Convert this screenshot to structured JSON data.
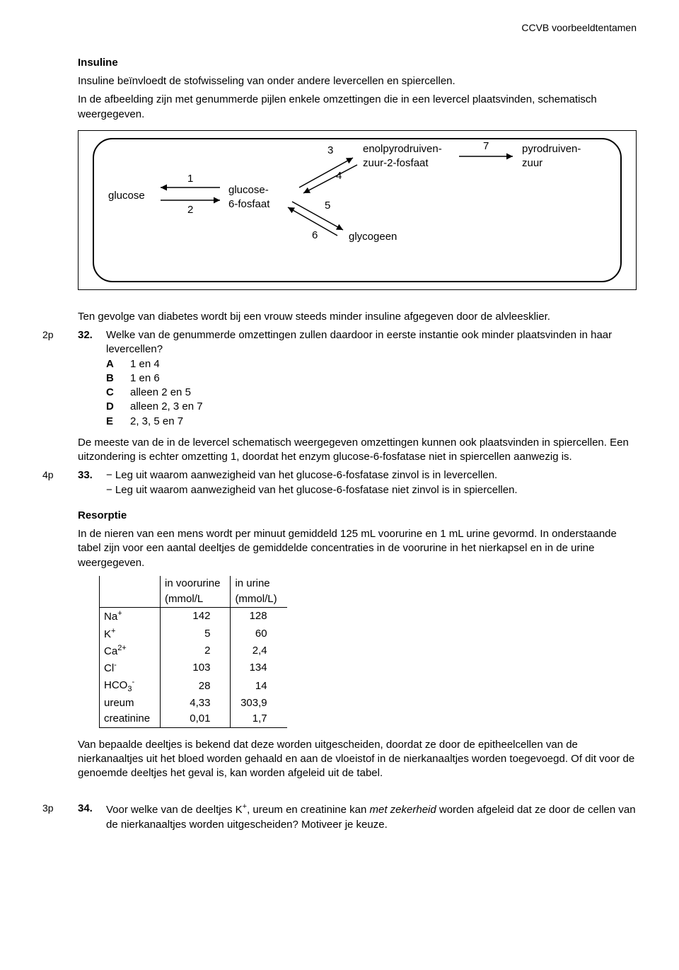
{
  "header": {
    "right": "CCVB voorbeeldtentamen"
  },
  "insuline": {
    "title": "Insuline",
    "p1": "Insuline beïnvloedt de stofwisseling van onder andere levercellen en spiercellen.",
    "p2": "In de afbeelding zijn met genummerde pijlen enkele omzettingen die in een levercel plaatsvinden, schematisch weergegeven."
  },
  "diagram": {
    "labels": {
      "glucose": "glucose",
      "glucose6p": "glucose-\n6-fosfaat",
      "enolpyruvate": "enolpyrodruiven-\nzuur-2-fosfaat",
      "pyruvate": "pyrodruiven-\nzuur",
      "glycogeen": "glycogeen"
    },
    "nums": {
      "n1": "1",
      "n2": "2",
      "n3": "3",
      "n4": "4",
      "n5": "5",
      "n6": "6",
      "n7": "7"
    }
  },
  "q32": {
    "pts": "2p",
    "num": "32.",
    "pre": "Ten gevolge van diabetes wordt bij een vrouw steeds minder insuline afgegeven door de alvleesklier.",
    "stem": "Welke van de genummerde omzettingen zullen daardoor in eerste instantie ook minder plaatsvinden in haar levercellen?",
    "opts": {
      "A": "1 en 4",
      "B": "1 en 6",
      "C": "alleen 2 en 5",
      "D": "alleen 2, 3 en 7",
      "E": "2, 3, 5 en 7"
    },
    "after": "De meeste van de in de levercel schematisch weergegeven omzettingen kunnen ook plaatsvinden in spiercellen. Een uitzondering is echter omzetting 1, doordat het enzym glucose-6-fosfatase niet in spiercellen aanwezig is."
  },
  "q33": {
    "pts": "4p",
    "num": "33.",
    "l1": "− Leg uit waarom aanwezigheid van het glucose-6-fosfatase zinvol is in levercellen.",
    "l2": "− Leg uit waarom aanwezigheid van het glucose-6-fosfatase niet zinvol is in spiercellen."
  },
  "resorptie": {
    "title": "Resorptie",
    "p": "In de nieren van een mens wordt per minuut gemiddeld 125 mL voorurine en 1 mL urine gevormd. In onderstaande tabel zijn voor een aantal deeltjes de gemiddelde concentraties in de voorurine in het nierkapsel en in de urine weergegeven."
  },
  "table": {
    "h1a": "in voorurine",
    "h1b": "(mmol/L",
    "h2a": "in urine",
    "h2b": "(mmol/L)",
    "rows": [
      {
        "name_html": "Na<sup>+</sup>",
        "voor": "142",
        "urine": "128"
      },
      {
        "name_html": "K<sup>+</sup>",
        "voor": "5",
        "urine": "60"
      },
      {
        "name_html": "Ca<sup>2+</sup>",
        "voor": "2",
        "urine": "2,4"
      },
      {
        "name_html": "Cl<sup>-</sup>",
        "voor": "103",
        "urine": "134"
      },
      {
        "name_html": "HCO<sub>3</sub><sup>-</sup>",
        "voor": "28",
        "urine": "14"
      },
      {
        "name_html": "ureum",
        "voor": "4,33",
        "urine": "303,9"
      },
      {
        "name_html": "creatinine",
        "voor": "0,01",
        "urine": "1,7"
      }
    ],
    "after": "Van bepaalde deeltjes is bekend dat deze worden uitgescheiden, doordat ze door de epitheelcellen van de nierkanaaltjes uit het bloed worden gehaald en aan de vloeistof in de nierkanaaltjes worden toegevoegd. Of dit voor de genoemde deeltjes het geval is, kan worden afgeleid uit de tabel."
  },
  "q34": {
    "pts": "3p",
    "num": "34.",
    "text_html": "Voor welke van de deeltjes K<sup>+</sup>, ureum en creatinine kan <span class=\"italic\">met zekerheid</span> worden afgeleid dat ze door de cellen van de nierkanaaltjes worden uitgescheiden? Motiveer je keuze."
  }
}
